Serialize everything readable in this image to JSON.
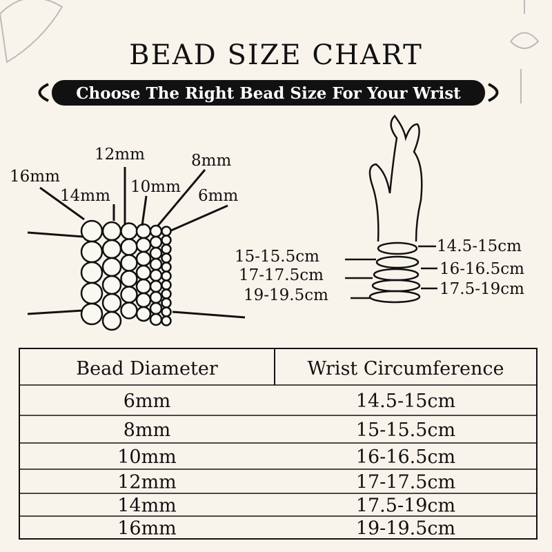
{
  "header": {
    "title": "BEAD SIZE CHART",
    "subtitle": "Choose The Right Bead Size For Your Wrist"
  },
  "bead_labels": [
    "16mm",
    "14mm",
    "12mm",
    "10mm",
    "8mm",
    "6mm"
  ],
  "wrist_labels_left": [
    "15-15.5cm",
    "17-17.5cm",
    "19-19.5cm"
  ],
  "wrist_labels_right": [
    "14.5-15cm",
    "16-16.5cm",
    "17.5-19cm"
  ],
  "table": {
    "columns": [
      "Bead Diameter",
      "Wrist Circumference"
    ],
    "rows": [
      [
        "6mm",
        "14.5-15cm"
      ],
      [
        "8mm",
        "15-15.5cm"
      ],
      [
        "10mm",
        "16-16.5cm"
      ],
      [
        "12mm",
        "17-17.5cm"
      ],
      [
        "14mm",
        "17.5-19cm"
      ],
      [
        "16mm",
        "19-19.5cm"
      ]
    ]
  }
}
